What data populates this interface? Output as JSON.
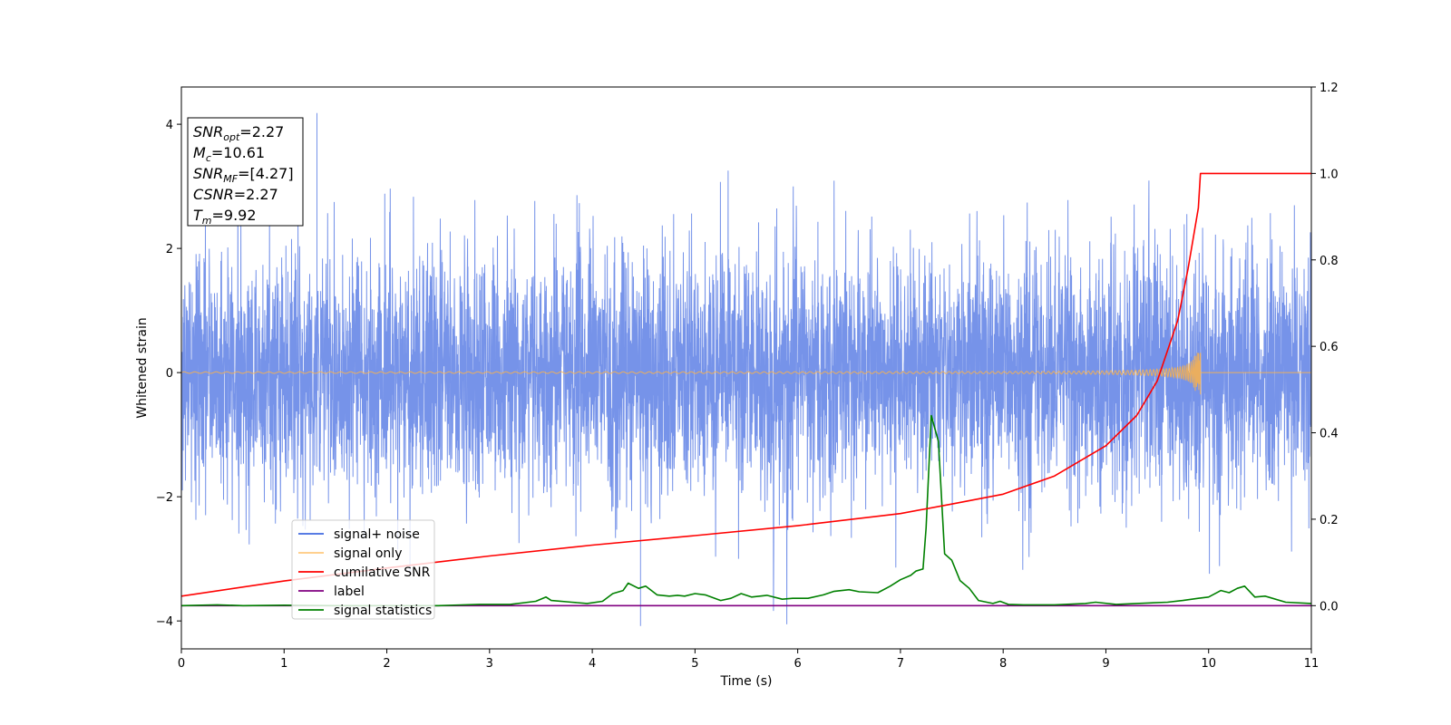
{
  "chart_data": {
    "type": "line",
    "xlabel": "Time (s)",
    "ylabel": "Whitened strain",
    "xlim": [
      0,
      11
    ],
    "ylim_left": [
      -4.45,
      4.6
    ],
    "ylim_right": [
      -0.1,
      1.2
    ],
    "x_ticks": [
      0,
      1,
      2,
      3,
      4,
      5,
      6,
      7,
      8,
      9,
      10,
      11
    ],
    "y_left_ticks": [
      -4,
      -2,
      0,
      2,
      4
    ],
    "y_right_ticks": [
      "0.0",
      "0.2",
      "0.4",
      "0.6",
      "0.8",
      "1.0",
      "1.2"
    ],
    "grid": false,
    "legend_position": "lower-left",
    "legend": [
      {
        "name": "signal+ noise",
        "color": "#4169e1"
      },
      {
        "name": "signal only",
        "color": "#ffb347"
      },
      {
        "name": "cumilative SNR",
        "color": "#ff0000"
      },
      {
        "name": "label",
        "color": "#800080"
      },
      {
        "name": "signal statistics",
        "color": "#008000"
      }
    ],
    "series": [
      {
        "name": "signal+ noise",
        "axis": "left",
        "description_values": "whitened gaussian noise, amplitude mostly within ±2.5, extremes 4.18 at t=1.32 and -4.08 at t=4.47",
        "max": 4.18,
        "min": -4.08
      },
      {
        "name": "signal only",
        "axis": "left",
        "chirp_end_time": 9.92,
        "final_amplitude": 0.32
      },
      {
        "name": "cumilative SNR",
        "axis": "right",
        "x": [
          0,
          1,
          2,
          3,
          4,
          5,
          6,
          7,
          7.5,
          8,
          8.5,
          9,
          9.3,
          9.5,
          9.7,
          9.8,
          9.9,
          9.92,
          11
        ],
        "y": [
          0.022,
          0.057,
          0.087,
          0.115,
          0.14,
          0.162,
          0.185,
          0.213,
          0.235,
          0.258,
          0.3,
          0.37,
          0.44,
          0.52,
          0.66,
          0.78,
          0.92,
          1.0,
          1.0
        ]
      },
      {
        "name": "label",
        "axis": "right",
        "x": [
          0,
          11
        ],
        "y": [
          0.0,
          0.0
        ]
      },
      {
        "name": "signal statistics",
        "axis": "right",
        "x": [
          0,
          0.35,
          0.6,
          1.0,
          1.5,
          2.0,
          2.5,
          2.9,
          3.2,
          3.45,
          3.55,
          3.6,
          3.8,
          3.95,
          4.1,
          4.2,
          4.3,
          4.35,
          4.45,
          4.52,
          4.63,
          4.75,
          4.83,
          4.9,
          5.0,
          5.1,
          5.25,
          5.35,
          5.45,
          5.55,
          5.7,
          5.85,
          5.95,
          6.1,
          6.25,
          6.35,
          6.5,
          6.6,
          6.78,
          6.9,
          7.0,
          7.1,
          7.15,
          7.22,
          7.25,
          7.3,
          7.37,
          7.43,
          7.5,
          7.58,
          7.67,
          7.76,
          7.9,
          7.97,
          8.05,
          8.2,
          8.5,
          8.8,
          8.9,
          9.1,
          9.3,
          9.6,
          9.75,
          9.9,
          10.0,
          10.12,
          10.2,
          10.28,
          10.35,
          10.45,
          10.55,
          10.75,
          11.0
        ],
        "y": [
          0.0,
          0.002,
          0.0,
          0.001,
          0.0,
          0.0,
          0.0,
          0.003,
          0.003,
          0.01,
          0.02,
          0.012,
          0.008,
          0.005,
          0.01,
          0.028,
          0.035,
          0.052,
          0.04,
          0.045,
          0.025,
          0.022,
          0.024,
          0.022,
          0.028,
          0.025,
          0.012,
          0.017,
          0.028,
          0.02,
          0.024,
          0.015,
          0.017,
          0.017,
          0.025,
          0.033,
          0.037,
          0.032,
          0.03,
          0.045,
          0.06,
          0.07,
          0.08,
          0.085,
          0.18,
          0.44,
          0.38,
          0.12,
          0.105,
          0.058,
          0.04,
          0.012,
          0.005,
          0.01,
          0.003,
          0.002,
          0.002,
          0.005,
          0.008,
          0.003,
          0.005,
          0.008,
          0.012,
          0.017,
          0.02,
          0.035,
          0.03,
          0.04,
          0.045,
          0.02,
          0.022,
          0.008,
          0.005
        ]
      }
    ],
    "annotation": {
      "lines": [
        {
          "base": "SNR",
          "sub": "opt",
          "value": "=2.27"
        },
        {
          "base": "M",
          "sub": "c",
          "value": "=10.61"
        },
        {
          "base": "SNR",
          "sub": "MF",
          "value": "=[4.27]"
        },
        {
          "base": "CSNR",
          "sub": "",
          "value": "=2.27"
        },
        {
          "base": "T",
          "sub": "m",
          "value": "=9.92"
        }
      ]
    }
  }
}
